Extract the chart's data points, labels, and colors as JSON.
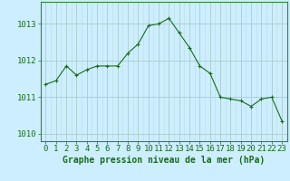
{
  "x": [
    0,
    1,
    2,
    3,
    4,
    5,
    6,
    7,
    8,
    9,
    10,
    11,
    12,
    13,
    14,
    15,
    16,
    17,
    18,
    19,
    20,
    21,
    22,
    23
  ],
  "y": [
    1011.35,
    1011.45,
    1011.85,
    1011.6,
    1011.75,
    1011.85,
    1011.85,
    1011.85,
    1012.2,
    1012.45,
    1012.95,
    1013.0,
    1013.15,
    1012.75,
    1012.35,
    1011.85,
    1011.65,
    1011.0,
    1010.95,
    1010.9,
    1010.75,
    1010.95,
    1011.0,
    1010.35
  ],
  "line_color": "#1a6b1a",
  "marker_color": "#1a6b1a",
  "bg_color": "#cceeff",
  "grid_color_major": "#aacccc",
  "grid_color_minor": "#bbdddd",
  "xlabel": "Graphe pression niveau de la mer (hPa)",
  "xlabel_color": "#1a6b1a",
  "tick_color": "#1a6b1a",
  "ylim": [
    1009.8,
    1013.6
  ],
  "yticks": [
    1010,
    1011,
    1012,
    1013
  ],
  "xlim": [
    -0.5,
    23.5
  ],
  "xticks": [
    0,
    1,
    2,
    3,
    4,
    5,
    6,
    7,
    8,
    9,
    10,
    11,
    12,
    13,
    14,
    15,
    16,
    17,
    18,
    19,
    20,
    21,
    22,
    23
  ],
  "xtick_labels": [
    "0",
    "1",
    "2",
    "3",
    "4",
    "5",
    "6",
    "7",
    "8",
    "9",
    "10",
    "11",
    "12",
    "13",
    "14",
    "15",
    "16",
    "17",
    "18",
    "19",
    "20",
    "21",
    "22",
    "23"
  ],
  "border_color": "#2d8b2d",
  "xlabel_fontsize": 7.0,
  "tick_fontsize": 6.5
}
